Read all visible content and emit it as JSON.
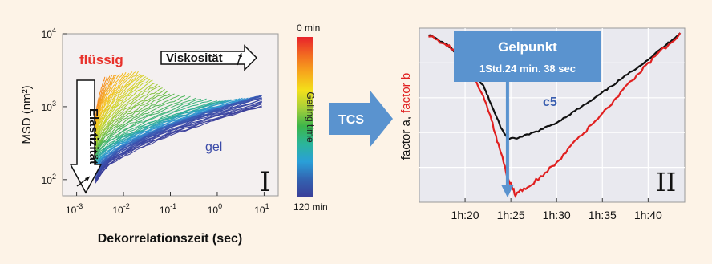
{
  "chart_data": [
    {
      "type": "line",
      "panel_label": "I",
      "xlabel": "Dekorrelationszeit (sec)",
      "ylabel": "MSD (nm²)",
      "x_scale": "log",
      "y_scale": "log",
      "xlim": [
        0.0005,
        20
      ],
      "ylim": [
        60,
        10000
      ],
      "x_ticks": [
        {
          "value": 0.001,
          "base": "10",
          "exp": "-3"
        },
        {
          "value": 0.01,
          "base": "10",
          "exp": "-2"
        },
        {
          "value": 0.1,
          "base": "10",
          "exp": "-1"
        },
        {
          "value": 1,
          "base": "10",
          "exp": "0"
        },
        {
          "value": 10,
          "base": "10",
          "exp": "1"
        }
      ],
      "y_ticks": [
        {
          "value": 100,
          "base": "10",
          "exp": "2"
        },
        {
          "value": 1000,
          "base": "10",
          "exp": "3"
        },
        {
          "value": 10000,
          "base": "10",
          "exp": "4"
        }
      ],
      "curve_families": [
        {
          "gelling_time_min": 0,
          "tau_start": 0.0025,
          "tau_end": 0.004,
          "msd_start": 600,
          "msd_end": 2500
        },
        {
          "gelling_time_min": 10,
          "tau_start": 0.0025,
          "tau_end": 0.008,
          "msd_start": 500,
          "msd_end": 2800
        },
        {
          "gelling_time_min": 20,
          "tau_start": 0.0025,
          "tau_end": 0.02,
          "msd_start": 400,
          "msd_end": 3000
        },
        {
          "gelling_time_min": 30,
          "tau_start": 0.0025,
          "tau_end": 0.035,
          "msd_start": 300,
          "msd_end": 2500
        },
        {
          "gelling_time_min": 45,
          "tau_start": 0.0025,
          "tau_end": 0.1,
          "msd_start": 220,
          "msd_end": 1500
        },
        {
          "gelling_time_min": 60,
          "tau_start": 0.0025,
          "tau_end": 1,
          "msd_start": 180,
          "msd_end": 1200
        },
        {
          "gelling_time_min": 80,
          "tau_start": 0.0025,
          "tau_end": 5,
          "msd_start": 130,
          "msd_end": 1300
        },
        {
          "gelling_time_min": 100,
          "tau_start": 0.0025,
          "tau_end": 9,
          "msd_start": 110,
          "msd_end": 1400
        },
        {
          "gelling_time_min": 120,
          "tau_start": 0.0025,
          "tau_end": 9,
          "msd_start": 90,
          "msd_end": 1000
        }
      ],
      "annotations": {
        "fluessig": "flüssig",
        "viskositaet": "Viskosität",
        "elastizitaet": "Elastizität",
        "gel": "gel"
      },
      "colorbar": {
        "label": "Gelling time",
        "top": "0 min",
        "bottom": "120 min",
        "colors": [
          "#e8222b",
          "#f26a21",
          "#f7a81c",
          "#f3e01a",
          "#a6cf3a",
          "#3cb54a",
          "#2bb59a",
          "#2a9fd8",
          "#3362b0",
          "#3a3d98"
        ]
      },
      "line_color_scale": [
        "#f58a1e",
        "#f6c21b",
        "#c9d629",
        "#5cb947",
        "#2fb28a",
        "#2f9ad3",
        "#3a6cc0",
        "#3a4aa8",
        "#3b3f9a"
      ]
    },
    {
      "type": "line",
      "panel_label": "II",
      "ylabel_parts": [
        "factor a, ",
        "factor b"
      ],
      "ylabel_colors": [
        "#111111",
        "#e02020"
      ],
      "x_unit": "minutes",
      "xlim": [
        75,
        104
      ],
      "x_ticks": [
        {
          "value": 80,
          "label": "1h:20"
        },
        {
          "value": 85,
          "label": "1h:25"
        },
        {
          "value": 90,
          "label": "1h:30"
        },
        {
          "value": 95,
          "label": "1h:35"
        },
        {
          "value": 100,
          "label": "1h:40"
        }
      ],
      "ylim": [
        0,
        1
      ],
      "series": [
        {
          "color": "#111111",
          "x": [
            76,
            78,
            80,
            82,
            83,
            84,
            84.7,
            86,
            88,
            90,
            92,
            94,
            96,
            98,
            100,
            102,
            103.5
          ],
          "y": [
            0.99,
            0.93,
            0.83,
            0.68,
            0.55,
            0.42,
            0.36,
            0.37,
            0.41,
            0.46,
            0.53,
            0.6,
            0.68,
            0.76,
            0.84,
            0.93,
            1.0
          ]
        },
        {
          "color": "#e02020",
          "x": [
            76,
            78,
            80,
            82,
            83,
            84,
            84.7,
            85.5,
            87,
            89,
            91,
            93,
            95,
            97,
            99,
            101,
            103.5
          ],
          "y": [
            0.99,
            0.93,
            0.82,
            0.62,
            0.45,
            0.26,
            0.12,
            0.03,
            0.08,
            0.17,
            0.28,
            0.4,
            0.52,
            0.64,
            0.76,
            0.87,
            1.0
          ]
        }
      ],
      "series_label": "c5",
      "gelpoint": {
        "title": "Gelpunkt",
        "detail": "1Std.24 min. 38 sec",
        "x": 84.63
      }
    }
  ],
  "middle_arrow": {
    "label": "TCS",
    "color": "#5a93cf"
  }
}
